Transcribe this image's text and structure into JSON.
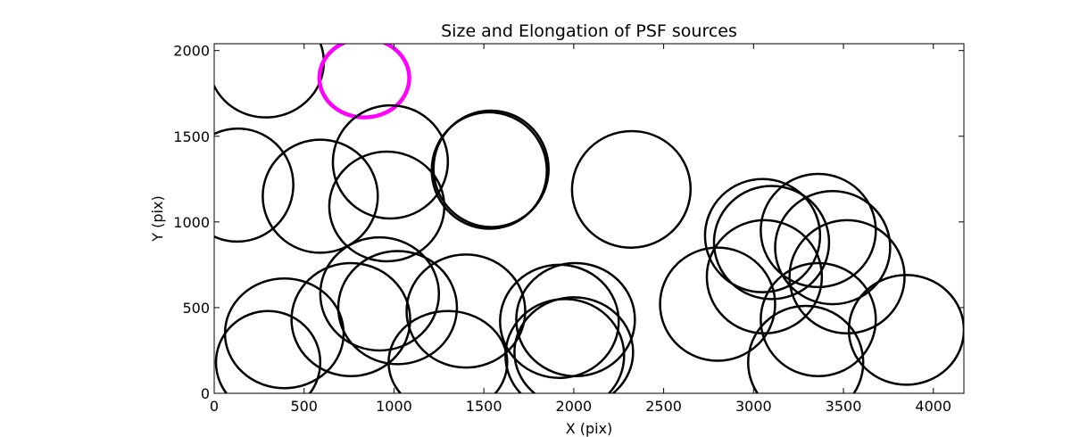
{
  "chart_data": {
    "type": "scatter",
    "title": "Size and Elongation of PSF sources",
    "xlabel": "X (pix)",
    "ylabel": "Y (pix)",
    "xlim": [
      0,
      4170
    ],
    "ylim": [
      0,
      2040
    ],
    "xticks": [
      0,
      500,
      1000,
      1500,
      2000,
      2500,
      3000,
      3500,
      4000
    ],
    "yticks": [
      0,
      500,
      1000,
      1500,
      2000
    ],
    "grid": false,
    "legend": "none",
    "marker": "ellipse",
    "colors": {
      "normal": "#000000",
      "highlight": "#ff00ff"
    },
    "sources": [
      {
        "x": 290,
        "y": 1930,
        "rx": 320,
        "ry": 320,
        "angle": 5,
        "highlight": false
      },
      {
        "x": 835,
        "y": 1840,
        "rx": 250,
        "ry": 230,
        "angle": 0,
        "highlight": true
      },
      {
        "x": 130,
        "y": 1215,
        "rx": 310,
        "ry": 330,
        "angle": -10,
        "highlight": false
      },
      {
        "x": 590,
        "y": 1150,
        "rx": 320,
        "ry": 330,
        "angle": 0,
        "highlight": false
      },
      {
        "x": 980,
        "y": 1350,
        "rx": 320,
        "ry": 330,
        "angle": 8,
        "highlight": false
      },
      {
        "x": 960,
        "y": 1090,
        "rx": 320,
        "ry": 320,
        "angle": 0,
        "highlight": false
      },
      {
        "x": 1530,
        "y": 1300,
        "rx": 320,
        "ry": 340,
        "angle": 10,
        "highlight": false
      },
      {
        "x": 1540,
        "y": 1310,
        "rx": 320,
        "ry": 340,
        "angle": 10,
        "highlight": false
      },
      {
        "x": 2320,
        "y": 1190,
        "rx": 330,
        "ry": 340,
        "angle": 12,
        "highlight": false
      },
      {
        "x": 390,
        "y": 350,
        "rx": 330,
        "ry": 320,
        "angle": 0,
        "highlight": false
      },
      {
        "x": 300,
        "y": 180,
        "rx": 290,
        "ry": 300,
        "angle": 0,
        "highlight": false
      },
      {
        "x": 760,
        "y": 430,
        "rx": 330,
        "ry": 330,
        "angle": 0,
        "highlight": false
      },
      {
        "x": 920,
        "y": 580,
        "rx": 330,
        "ry": 330,
        "angle": 0,
        "highlight": false
      },
      {
        "x": 1020,
        "y": 500,
        "rx": 330,
        "ry": 330,
        "angle": 0,
        "highlight": false
      },
      {
        "x": 1400,
        "y": 480,
        "rx": 330,
        "ry": 330,
        "angle": 0,
        "highlight": false
      },
      {
        "x": 1300,
        "y": 180,
        "rx": 330,
        "ry": 300,
        "angle": 0,
        "highlight": false
      },
      {
        "x": 1920,
        "y": 420,
        "rx": 330,
        "ry": 330,
        "angle": 0,
        "highlight": false
      },
      {
        "x": 2010,
        "y": 430,
        "rx": 330,
        "ry": 330,
        "angle": 0,
        "highlight": false
      },
      {
        "x": 1950,
        "y": 220,
        "rx": 330,
        "ry": 330,
        "angle": 0,
        "highlight": false
      },
      {
        "x": 2000,
        "y": 240,
        "rx": 330,
        "ry": 320,
        "angle": 0,
        "highlight": false
      },
      {
        "x": 2800,
        "y": 520,
        "rx": 320,
        "ry": 330,
        "angle": 0,
        "highlight": false
      },
      {
        "x": 3050,
        "y": 920,
        "rx": 320,
        "ry": 330,
        "angle": 0,
        "highlight": false
      },
      {
        "x": 3100,
        "y": 880,
        "rx": 320,
        "ry": 330,
        "angle": 0,
        "highlight": false
      },
      {
        "x": 3060,
        "y": 680,
        "rx": 320,
        "ry": 330,
        "angle": 0,
        "highlight": false
      },
      {
        "x": 3360,
        "y": 950,
        "rx": 320,
        "ry": 330,
        "angle": 0,
        "highlight": false
      },
      {
        "x": 3440,
        "y": 850,
        "rx": 320,
        "ry": 330,
        "angle": 0,
        "highlight": false
      },
      {
        "x": 3520,
        "y": 680,
        "rx": 320,
        "ry": 330,
        "angle": 0,
        "highlight": false
      },
      {
        "x": 3360,
        "y": 430,
        "rx": 320,
        "ry": 330,
        "angle": 0,
        "highlight": false
      },
      {
        "x": 3290,
        "y": 180,
        "rx": 320,
        "ry": 330,
        "angle": 0,
        "highlight": false
      },
      {
        "x": 3850,
        "y": 370,
        "rx": 320,
        "ry": 320,
        "angle": 0,
        "highlight": false
      }
    ]
  }
}
